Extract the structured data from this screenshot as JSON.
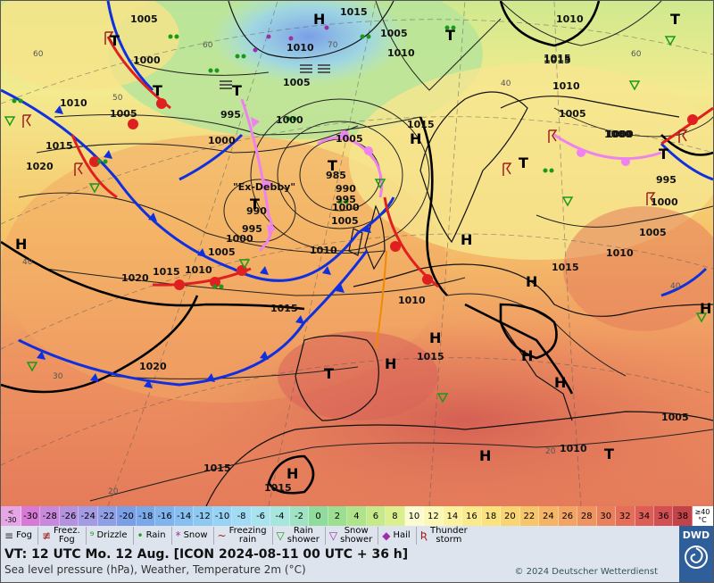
{
  "map": {
    "pressure_labels": [
      "1005",
      "1015",
      "1000",
      "1005",
      "1010",
      "1005",
      "1010",
      "1015",
      "1005",
      "1010",
      "1015",
      "1020",
      "1000",
      "1015",
      "1005",
      "1010",
      "995",
      "1000",
      "1005",
      "1000",
      "985",
      "990",
      "995",
      "990",
      "1000",
      "995",
      "1005",
      "1000",
      "1010",
      "1005",
      "1015",
      "1010",
      "1020",
      "1015",
      "1015",
      "1010",
      "1000",
      "995",
      "1000",
      "1005",
      "1015",
      "1010",
      "1010",
      "1015",
      "1020",
      "1005",
      "1010",
      "1015",
      "1015"
    ],
    "highs": [
      "H",
      "H",
      "H",
      "H",
      "H",
      "H",
      "H",
      "H",
      "H",
      "H",
      "H",
      "H"
    ],
    "lows": [
      "T",
      "T",
      "T",
      "T",
      "T",
      "T",
      "T",
      "T",
      "T",
      "T",
      "T"
    ],
    "named_low": "\"Ex-Debby\"",
    "temp_contour_labels": [
      "60",
      "60",
      "50",
      "40",
      "40",
      "30",
      "20",
      "20",
      "60",
      "70",
      "40"
    ]
  },
  "scale": {
    "values": [
      "-30",
      "-28",
      "-26",
      "-24",
      "-22",
      "-20",
      "-18",
      "-16",
      "-14",
      "-12",
      "-10",
      "-8",
      "-6",
      "-4",
      "-2",
      "0",
      "2",
      "4",
      "6",
      "8",
      "10",
      "12",
      "14",
      "16",
      "18",
      "20",
      "22",
      "24",
      "26",
      "28",
      "30",
      "32",
      "34",
      "36",
      "38"
    ],
    "colors": [
      "#d67ad6",
      "#c889dc",
      "#b492e0",
      "#a39be4",
      "#8f9fe6",
      "#7a9fe6",
      "#7aa9ea",
      "#7fb4ec",
      "#86bff0",
      "#8ec9f2",
      "#98d2f4",
      "#a2dcf4",
      "#a9e3ee",
      "#a7e6dc",
      "#9fe3c4",
      "#8fdc9c",
      "#9cdf90",
      "#b0e48c",
      "#c6ea8a",
      "#dcef8e",
      "#fbfbd2",
      "#fbf7b6",
      "#fbf19f",
      "#fbea8c",
      "#fae37e",
      "#f8d572",
      "#f7c56a",
      "#f5b466",
      "#f2a464",
      "#ee9461",
      "#e9805c",
      "#e46e58",
      "#dc5e55",
      "#d24f52",
      "#c34448"
    ],
    "low_label": "<\n-30",
    "high_label": "≥40\n°C"
  },
  "legend": [
    {
      "icon": "fog-icon",
      "sym": "≡",
      "label": "Fog",
      "color": "#333"
    },
    {
      "icon": "freezing-fog-icon",
      "sym": "≢",
      "label": "Freez.\nFog",
      "color": "#a02020"
    },
    {
      "icon": "drizzle-icon",
      "sym": "⁹",
      "label": "Drizzle",
      "color": "#1a9a1a"
    },
    {
      "icon": "rain-icon",
      "sym": "•",
      "label": "Rain",
      "color": "#1a9a1a"
    },
    {
      "icon": "snow-icon",
      "sym": "*",
      "label": "Snow",
      "color": "#9b2fa8"
    },
    {
      "icon": "freezing-rain-icon",
      "sym": "~",
      "label": "Freezing\nrain",
      "color": "#a02020"
    },
    {
      "icon": "rain-shower-icon",
      "sym": "▽",
      "label": "Rain\nshower",
      "color": "#1a9a1a"
    },
    {
      "icon": "snow-shower-icon",
      "sym": "▽",
      "label": "Snow\nshower",
      "color": "#9b2fa8"
    },
    {
      "icon": "hail-icon",
      "sym": "◆",
      "label": "Hail",
      "color": "#9b2fa8"
    },
    {
      "icon": "thunderstorm-icon",
      "sym": "Ʀ",
      "label": "Thunder\nstorm",
      "color": "#a02020"
    }
  ],
  "info": {
    "valid_time": "VT: 12 UTC Mo.  12 Aug. [ICON 2024-08-11  00 UTC + 36 h]",
    "description": "Sea level pressure (hPa), Weather, Temperature 2m (°C)",
    "copyright": "© 2024 Deutscher Wetterdienst",
    "logo_text": "DWD"
  }
}
